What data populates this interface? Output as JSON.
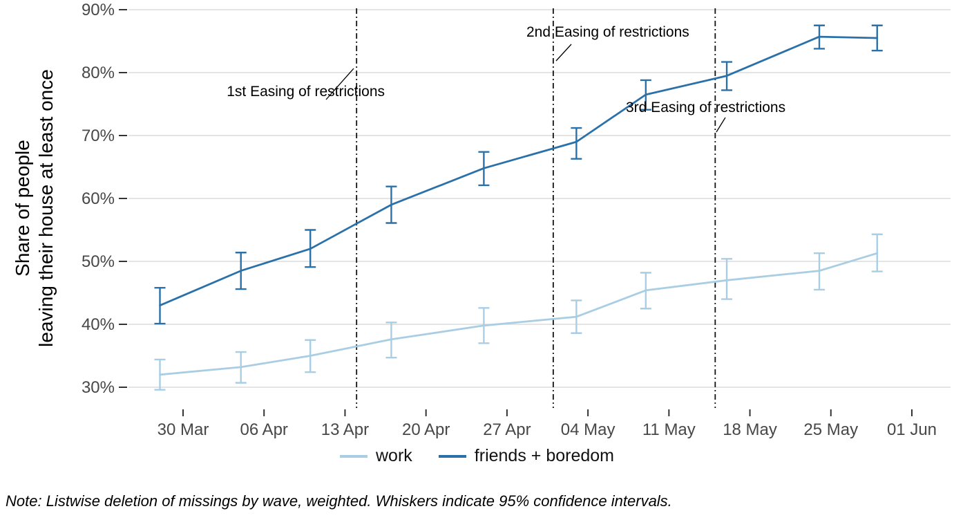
{
  "colors": {
    "work": "#a9cee4",
    "friends_boredom": "#2b71a9",
    "event_line": "#111111",
    "gridline": "#dcdcdc",
    "tick_text": "#474747"
  },
  "chart_data": {
    "type": "line",
    "title": "",
    "xlabel": "",
    "ylabel_lines": [
      "Share of people",
      "leaving their house at least once"
    ],
    "ylim": [
      27,
      91
    ],
    "grid": "horizontal-only",
    "legend_position": "bottom-center",
    "y_ticks": [
      {
        "v": 30,
        "label": "30%"
      },
      {
        "v": 40,
        "label": "40%"
      },
      {
        "v": 50,
        "label": "50%"
      },
      {
        "v": 60,
        "label": "60%"
      },
      {
        "v": 70,
        "label": "70%"
      },
      {
        "v": 80,
        "label": "80%"
      },
      {
        "v": 90,
        "label": "90%"
      }
    ],
    "x_ticks": [
      {
        "day": 0,
        "label": "30 Mar"
      },
      {
        "day": 7,
        "label": "06 Apr"
      },
      {
        "day": 14,
        "label": "13 Apr"
      },
      {
        "day": 21,
        "label": "20 Apr"
      },
      {
        "day": 28,
        "label": "27 Apr"
      },
      {
        "day": 35,
        "label": "04 May"
      },
      {
        "day": 42,
        "label": "11 May"
      },
      {
        "day": 49,
        "label": "18 May"
      },
      {
        "day": 56,
        "label": "25 May"
      },
      {
        "day": 63,
        "label": "01 Jun"
      }
    ],
    "x_day_offsets": [
      -2,
      5,
      11,
      18,
      26,
      34,
      40,
      47,
      55,
      60
    ],
    "series": [
      {
        "name": "work",
        "color": "#a9cee4",
        "values": [
          32.0,
          33.2,
          35.0,
          37.6,
          39.8,
          41.2,
          45.4,
          47.0,
          48.5,
          51.3
        ],
        "ci_lower": [
          29.6,
          30.7,
          32.4,
          34.7,
          37.0,
          38.6,
          42.5,
          44.0,
          45.5,
          48.4
        ],
        "ci_upper": [
          34.4,
          35.6,
          37.5,
          40.3,
          42.6,
          43.8,
          48.2,
          50.4,
          51.3,
          54.3
        ]
      },
      {
        "name": "friends + boredom",
        "color": "#2b71a9",
        "values": [
          43.0,
          48.5,
          52.0,
          59.0,
          64.8,
          69.0,
          76.5,
          79.5,
          85.7,
          85.5
        ],
        "ci_lower": [
          40.1,
          45.6,
          49.1,
          56.1,
          62.1,
          66.3,
          74.1,
          77.2,
          83.8,
          83.5
        ],
        "ci_upper": [
          45.8,
          51.4,
          55.0,
          61.9,
          67.4,
          71.2,
          78.8,
          81.7,
          87.5,
          87.5
        ]
      }
    ],
    "events": [
      {
        "label": "1st Easing of restrictions",
        "day": 15
      },
      {
        "label": "2nd Easing of restrictions",
        "day": 32
      },
      {
        "label": "3rd Easing of restrictions",
        "day": 46
      }
    ],
    "note": "Note: Listwise deletion of missings by wave, weighted. Whiskers indicate 95% confidence intervals."
  }
}
